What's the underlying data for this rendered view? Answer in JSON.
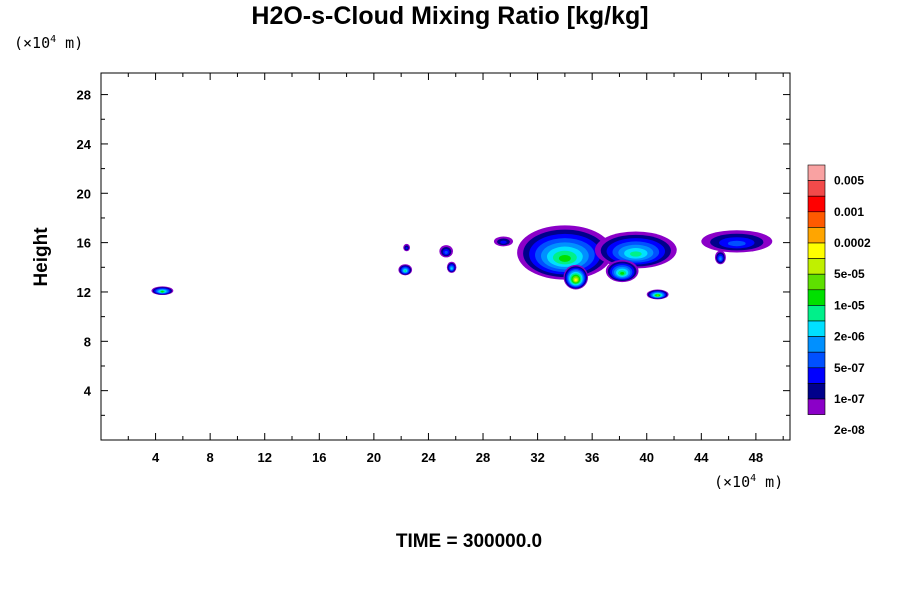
{
  "chart_data": {
    "type": "heatmap",
    "title": "H2O-s-Cloud Mixing Ratio [kg/kg]",
    "xlabel": "",
    "ylabel": "Height",
    "x_unit": "(×10⁴ m)",
    "y_unit": "(×10⁴ m)",
    "xlim": [
      0,
      50.5
    ],
    "ylim": [
      0,
      29.75
    ],
    "x_ticks": [
      4,
      8,
      12,
      16,
      20,
      24,
      28,
      32,
      36,
      40,
      44,
      48
    ],
    "y_ticks": [
      4,
      8,
      12,
      16,
      20,
      24,
      28
    ],
    "colorbar": {
      "labels": [
        "0.005",
        "0.001",
        "0.0002",
        "5e-05",
        "1e-05",
        "2e-06",
        "5e-07",
        "1e-07",
        "2e-08"
      ],
      "colors": [
        "#f9a2a2",
        "#f24a4a",
        "#ff0000",
        "#ff5a00",
        "#ffa500",
        "#ffff00",
        "#c0f000",
        "#5ee000",
        "#00e000",
        "#00f08a",
        "#00e0ff",
        "#0090ff",
        "#0050ff",
        "#0000ff",
        "#00008b",
        "#8b00c8"
      ]
    },
    "clouds": [
      {
        "x": 4.5,
        "y": 12.1,
        "rx": 0.8,
        "ry": 0.35,
        "level": 8
      },
      {
        "x": 22.3,
        "y": 13.8,
        "rx": 0.5,
        "ry": 0.45,
        "level": 9
      },
      {
        "x": 22.4,
        "y": 15.6,
        "rx": 0.25,
        "ry": 0.3,
        "level": 13
      },
      {
        "x": 25.3,
        "y": 15.3,
        "rx": 0.5,
        "ry": 0.5,
        "level": 12
      },
      {
        "x": 25.7,
        "y": 14.0,
        "rx": 0.35,
        "ry": 0.45,
        "level": 10
      },
      {
        "x": 29.5,
        "y": 16.1,
        "rx": 0.7,
        "ry": 0.4,
        "level": 13
      },
      {
        "x": 34.0,
        "y": 15.2,
        "rx": 3.5,
        "ry": 2.2,
        "level": 8
      },
      {
        "x": 34.8,
        "y": 13.2,
        "rx": 0.9,
        "ry": 1.0,
        "level": 5
      },
      {
        "x": 39.2,
        "y": 15.4,
        "rx": 3.0,
        "ry": 1.5,
        "level": 9
      },
      {
        "x": 38.2,
        "y": 13.7,
        "rx": 1.2,
        "ry": 0.9,
        "level": 8
      },
      {
        "x": 40.8,
        "y": 11.8,
        "rx": 0.8,
        "ry": 0.4,
        "level": 7
      },
      {
        "x": 46.6,
        "y": 16.1,
        "rx": 2.6,
        "ry": 0.9,
        "level": 12
      },
      {
        "x": 45.4,
        "y": 14.8,
        "rx": 0.4,
        "ry": 0.55,
        "level": 11
      }
    ],
    "time_label": "TIME = 300000.0"
  }
}
